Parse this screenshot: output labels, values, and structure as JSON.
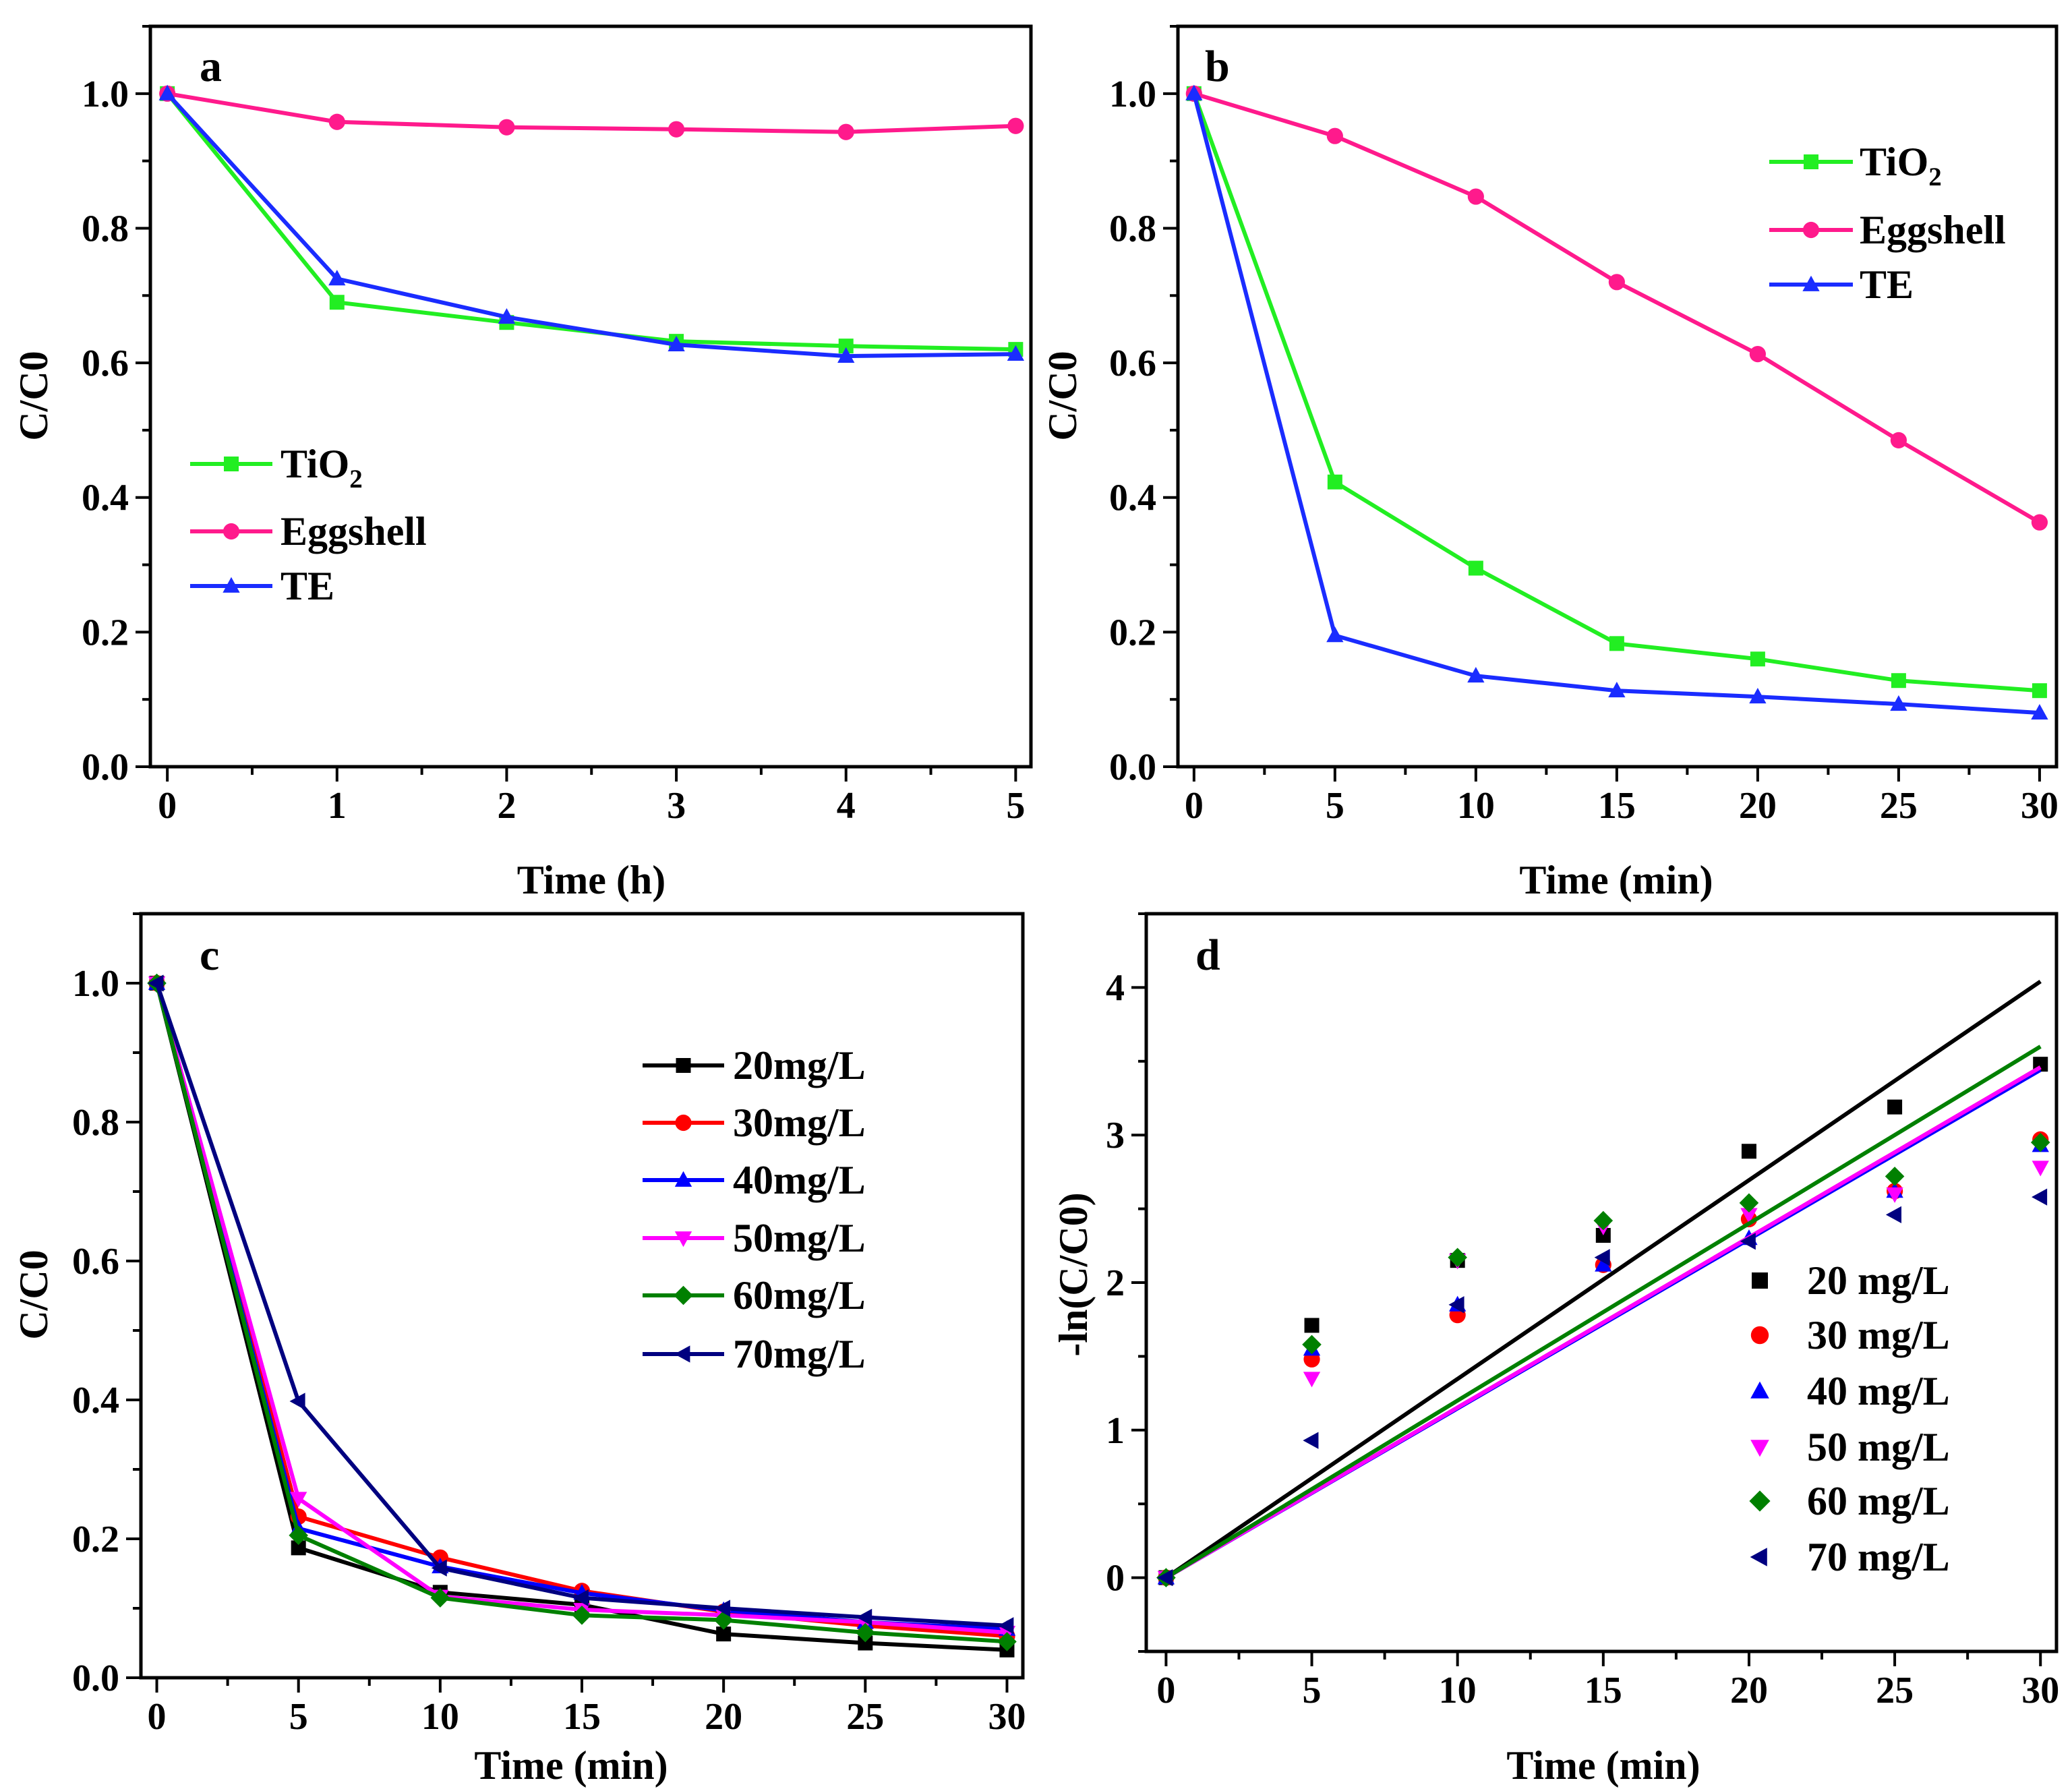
{
  "chart_data": [
    {
      "panel": "a",
      "type": "line",
      "xlabel": "Time (h)",
      "ylabel": "C/C0",
      "xlim": [
        -0.1,
        5.09
      ],
      "ylim": [
        0,
        1.1
      ],
      "xticks": [
        0,
        1,
        2,
        3,
        4,
        5
      ],
      "yticks": [
        0.0,
        0.2,
        0.4,
        0.6,
        0.8,
        1.0
      ],
      "ytick_labels": [
        "0.0",
        "0.2",
        "0.4",
        "0.6",
        "0.8",
        "1.0"
      ],
      "x": [
        0,
        1,
        2,
        3,
        4,
        5
      ],
      "legend_position": "center-left",
      "series": [
        {
          "name": "TiO2",
          "color": "#22ee22",
          "marker": "square",
          "values": [
            1.0,
            0.69,
            0.66,
            0.632,
            0.625,
            0.62
          ]
        },
        {
          "name": "Eggshell",
          "color": "#ff1a8c",
          "marker": "circle",
          "values": [
            1.0,
            0.958,
            0.95,
            0.947,
            0.943,
            0.952
          ]
        },
        {
          "name": "TE",
          "color": "#1a2cff",
          "marker": "triangle-up",
          "values": [
            1.0,
            0.725,
            0.668,
            0.627,
            0.61,
            0.613
          ]
        }
      ]
    },
    {
      "panel": "b",
      "type": "line",
      "xlabel": "Time (min)",
      "ylabel": "C/C0",
      "xlim": [
        -0.57,
        30.6
      ],
      "ylim": [
        0,
        1.1
      ],
      "xticks": [
        0,
        5,
        10,
        15,
        20,
        25,
        30
      ],
      "yticks": [
        0.0,
        0.2,
        0.4,
        0.6,
        0.8,
        1.0
      ],
      "ytick_labels": [
        "0.0",
        "0.2",
        "0.4",
        "0.6",
        "0.8",
        "1.0"
      ],
      "x": [
        0,
        5,
        10,
        15,
        20,
        25,
        30
      ],
      "legend_position": "top-right",
      "series": [
        {
          "name": "TiO2",
          "color": "#22ee22",
          "marker": "square",
          "values": [
            1.0,
            0.423,
            0.295,
            0.183,
            0.16,
            0.128,
            0.113
          ]
        },
        {
          "name": "Eggshell",
          "color": "#ff1a8c",
          "marker": "circle",
          "values": [
            1.0,
            0.937,
            0.847,
            0.72,
            0.613,
            0.485,
            0.363
          ]
        },
        {
          "name": "TE",
          "color": "#1a2cff",
          "marker": "triangle-up",
          "values": [
            1.0,
            0.195,
            0.135,
            0.113,
            0.104,
            0.093,
            0.08
          ]
        }
      ]
    },
    {
      "panel": "c",
      "type": "line",
      "xlabel": "Time (min)",
      "ylabel": "C/C0",
      "xlim": [
        -0.56,
        30.56
      ],
      "ylim": [
        0,
        1.1
      ],
      "xticks": [
        0,
        5,
        10,
        15,
        20,
        25,
        30
      ],
      "yticks": [
        0.0,
        0.2,
        0.4,
        0.6,
        0.8,
        1.0
      ],
      "ytick_labels": [
        "0.0",
        "0.2",
        "0.4",
        "0.6",
        "0.8",
        "1.0"
      ],
      "x": [
        0,
        5,
        10,
        15,
        20,
        25,
        30
      ],
      "legend_position": "top-right",
      "series": [
        {
          "name": "20mg/L",
          "color": "#000000",
          "marker": "square",
          "values": [
            1.0,
            0.187,
            0.123,
            0.105,
            0.063,
            0.05,
            0.04
          ]
        },
        {
          "name": "30mg/L",
          "color": "#ff0000",
          "marker": "circle",
          "values": [
            1.0,
            0.232,
            0.173,
            0.125,
            0.095,
            0.075,
            0.06
          ]
        },
        {
          "name": "40mg/L",
          "color": "#0000ff",
          "marker": "triangle-up",
          "values": [
            1.0,
            0.215,
            0.16,
            0.122,
            0.097,
            0.08,
            0.07
          ]
        },
        {
          "name": "50mg/L",
          "color": "#ff00ff",
          "marker": "triangle-down",
          "values": [
            1.0,
            0.258,
            0.117,
            0.098,
            0.09,
            0.08,
            0.065
          ]
        },
        {
          "name": "60mg/L",
          "color": "#008000",
          "marker": "diamond",
          "values": [
            1.0,
            0.205,
            0.115,
            0.09,
            0.083,
            0.065,
            0.052
          ]
        },
        {
          "name": "70mg/L",
          "color": "#000080",
          "marker": "triangle-left",
          "values": [
            1.0,
            0.398,
            0.158,
            0.115,
            0.1,
            0.087,
            0.075
          ]
        }
      ]
    },
    {
      "panel": "d",
      "type": "scatter",
      "xlabel": "Time (min)",
      "ylabel": "-ln(C/C0)",
      "xlim": [
        -0.68,
        30.55
      ],
      "ylim": [
        -0.5,
        4.5
      ],
      "xticks": [
        0,
        5,
        10,
        15,
        20,
        25,
        30
      ],
      "yticks": [
        0,
        1,
        2,
        3,
        4
      ],
      "ytick_labels": [
        "0",
        "1",
        "2",
        "3",
        "4"
      ],
      "x": [
        0,
        5,
        10,
        15,
        20,
        25,
        30
      ],
      "legend_position": "bottom-right",
      "series": [
        {
          "name": "20 mg/L",
          "color": "#000000",
          "marker": "square",
          "values": [
            0,
            1.71,
            2.15,
            2.32,
            2.89,
            3.19,
            3.48
          ],
          "fit_slope": 0.1347
        },
        {
          "name": "30 mg/L",
          "color": "#ff0000",
          "marker": "circle",
          "values": [
            0,
            1.48,
            1.78,
            2.12,
            2.43,
            2.62,
            2.97
          ],
          "fit_slope": 0.1153
        },
        {
          "name": "40 mg/L",
          "color": "#0000ff",
          "marker": "triangle-up",
          "values": [
            0,
            1.55,
            1.85,
            2.12,
            2.3,
            2.62,
            2.93
          ],
          "fit_slope": 0.1147
        },
        {
          "name": "50 mg/L",
          "color": "#ff00ff",
          "marker": "triangle-down",
          "values": [
            0,
            1.35,
            2.15,
            2.38,
            2.46,
            2.6,
            2.78
          ],
          "fit_slope": 0.1153
        },
        {
          "name": "60 mg/L",
          "color": "#008000",
          "marker": "diamond",
          "values": [
            0,
            1.58,
            2.17,
            2.42,
            2.54,
            2.72,
            2.95
          ],
          "fit_slope": 0.12
        },
        {
          "name": "70 mg/L",
          "color": "#000080",
          "marker": "triangle-left",
          "values": [
            0,
            0.93,
            1.85,
            2.17,
            2.28,
            2.46,
            2.58
          ]
        }
      ]
    }
  ]
}
